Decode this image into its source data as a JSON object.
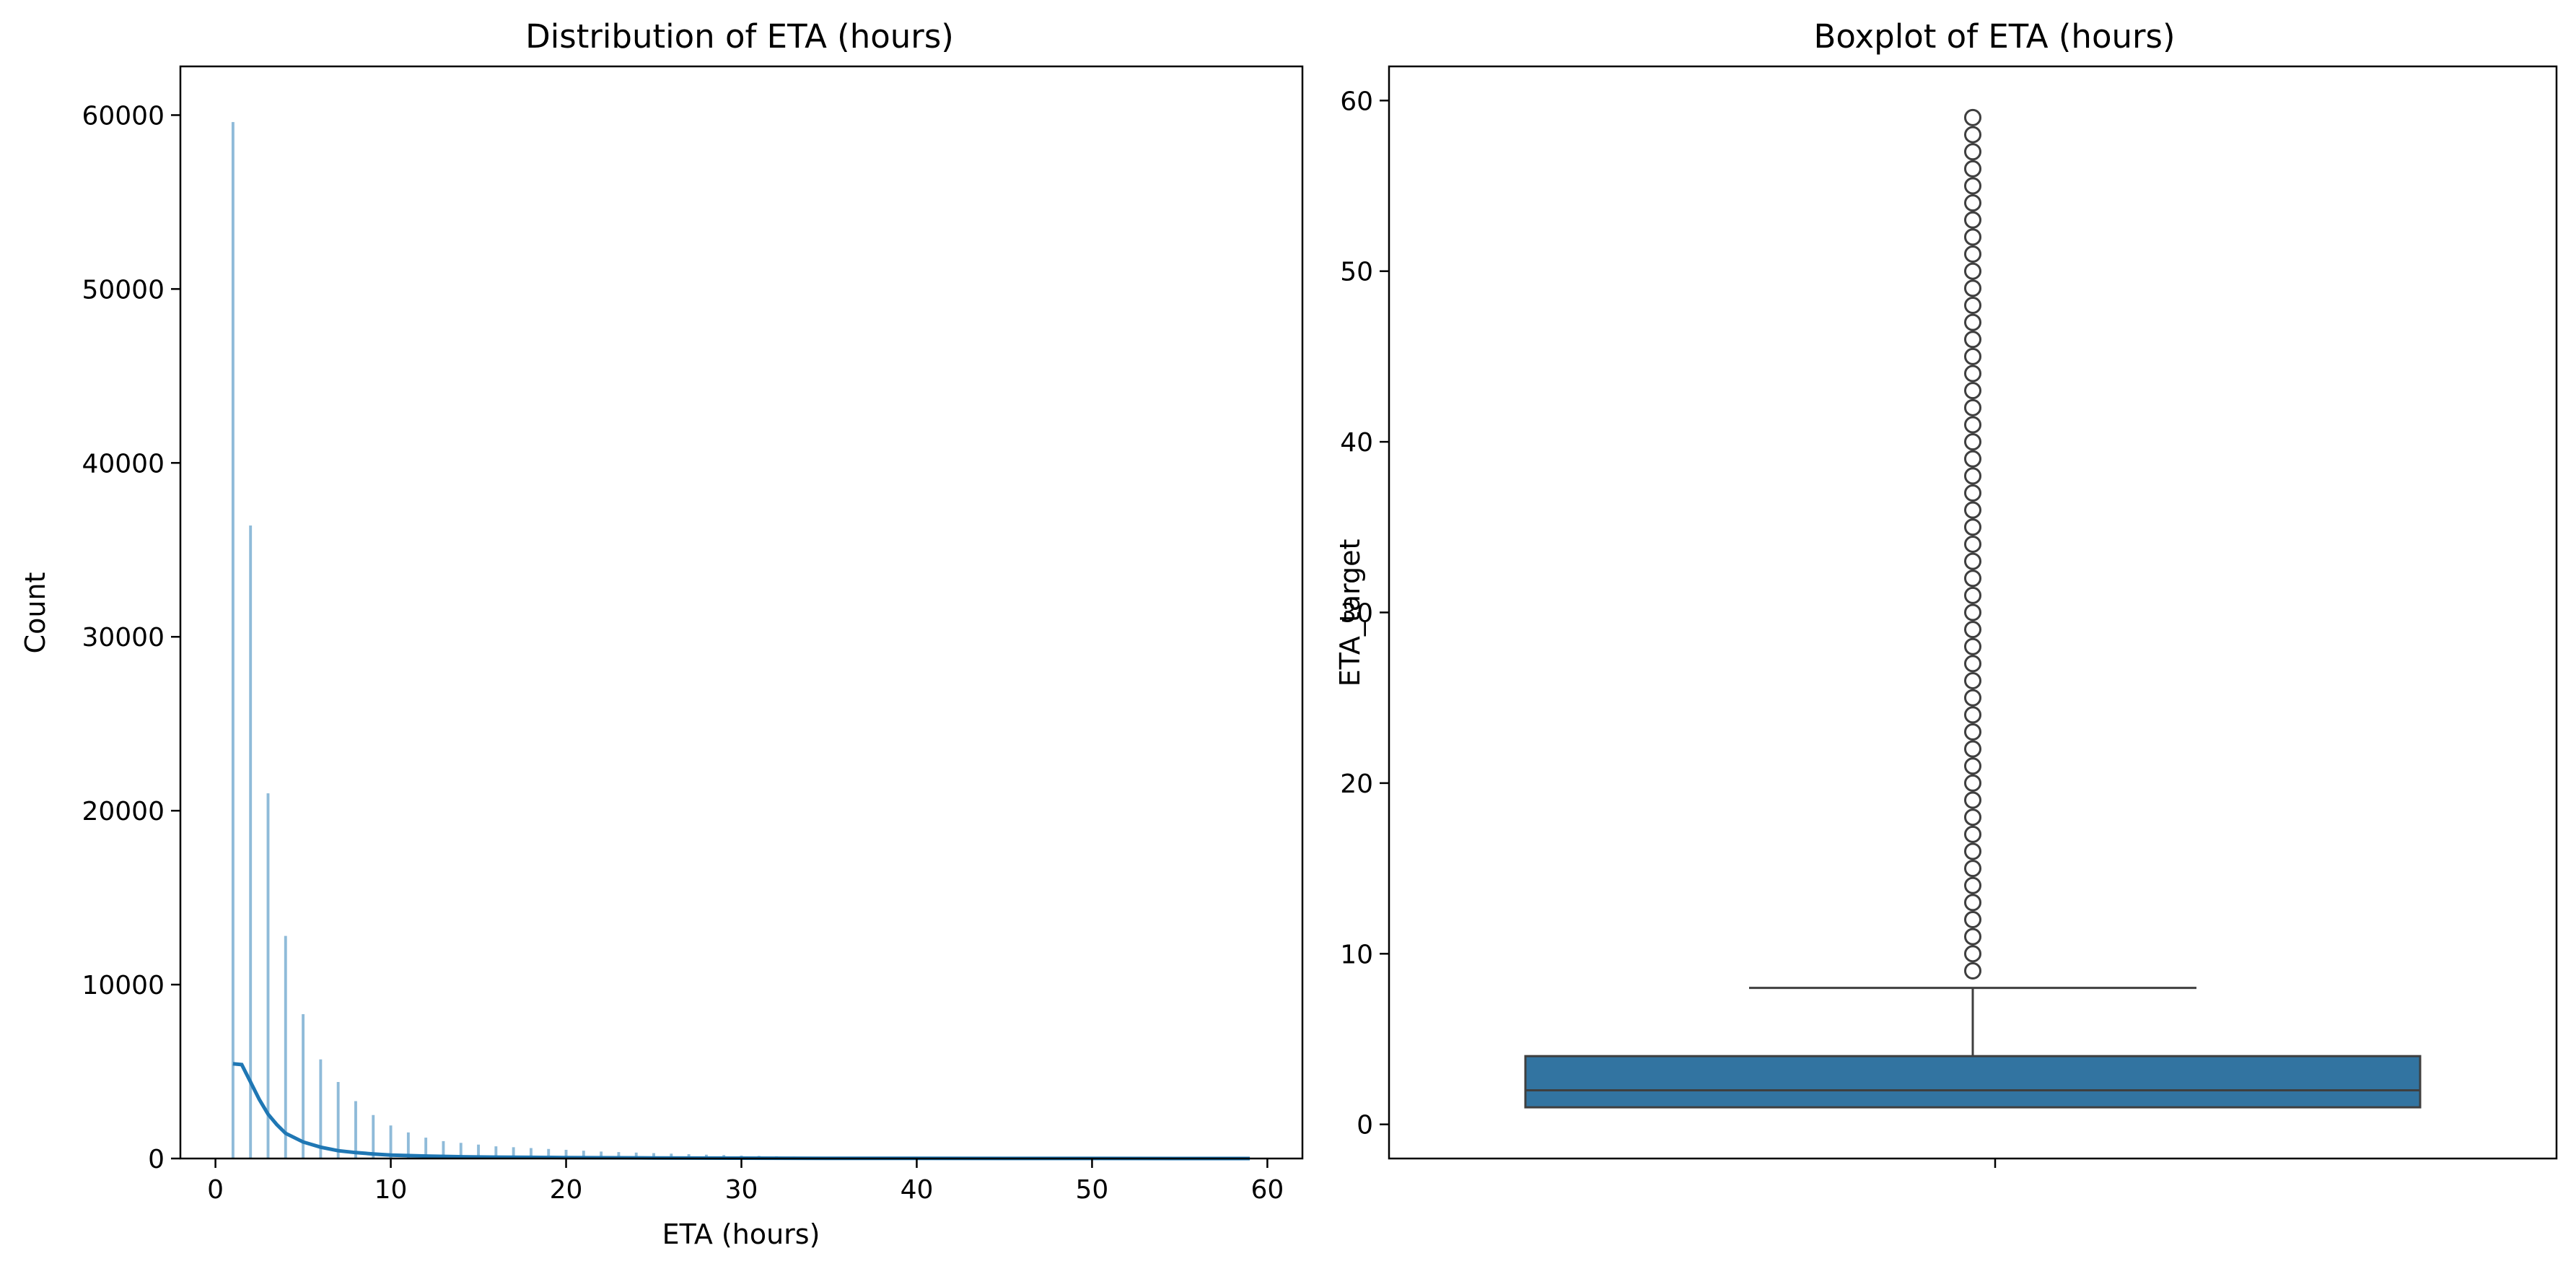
{
  "chart_data": [
    {
      "type": "histogram",
      "title": "Distribution of ETA (hours)",
      "xlabel": "ETA (hours)",
      "ylabel": "Count",
      "xlim": [
        -2,
        62
      ],
      "ylim": [
        0,
        62800
      ],
      "xticks": [
        0,
        10,
        20,
        30,
        40,
        50,
        60
      ],
      "yticks": [
        0,
        10000,
        20000,
        30000,
        40000,
        50000,
        60000
      ],
      "grid": false,
      "bar_color": "#1f77b4",
      "bins": {
        "x": [
          1,
          2,
          3,
          4,
          5,
          6,
          7,
          8,
          9,
          10,
          11,
          12,
          13,
          14,
          15,
          16,
          17,
          18,
          19,
          20,
          21,
          22,
          23,
          24,
          25,
          26,
          27,
          28,
          29,
          30,
          31,
          32,
          33,
          34,
          35,
          36,
          37,
          38,
          39,
          40,
          41,
          42,
          43,
          44,
          45,
          46,
          47,
          48,
          49,
          50,
          51,
          52,
          53,
          54,
          55,
          56,
          57,
          58,
          59
        ],
        "counts": [
          59600,
          36400,
          21000,
          12800,
          8300,
          5700,
          4400,
          3300,
          2500,
          1900,
          1500,
          1200,
          1000,
          900,
          800,
          700,
          650,
          600,
          550,
          500,
          450,
          400,
          370,
          340,
          310,
          280,
          250,
          220,
          200,
          170,
          150,
          130,
          110,
          95,
          85,
          75,
          65,
          55,
          50,
          45,
          40,
          35,
          30,
          28,
          25,
          22,
          20,
          18,
          16,
          14,
          12,
          10,
          9,
          8,
          7,
          6,
          5,
          4,
          3
        ]
      },
      "kde": {
        "x": [
          1,
          1.5,
          2,
          2.5,
          3,
          3.5,
          4,
          5,
          6,
          7,
          8,
          9,
          10,
          12,
          14,
          16,
          18,
          20,
          25,
          30,
          35,
          40,
          45,
          50,
          55,
          59
        ],
        "y": [
          5450,
          5400,
          4400,
          3400,
          2550,
          1950,
          1450,
          950,
          650,
          450,
          340,
          260,
          200,
          140,
          100,
          80,
          65,
          55,
          35,
          22,
          14,
          9,
          6,
          4,
          2,
          1
        ]
      }
    },
    {
      "type": "boxplot",
      "title": "Boxplot of ETA (hours)",
      "xlabel": "",
      "ylabel": "ETA_target",
      "ylim": [
        -2,
        62
      ],
      "yticks": [
        0,
        10,
        20,
        30,
        40,
        50,
        60
      ],
      "grid": false,
      "box_color": "#3274a1",
      "stats": {
        "min": 1,
        "q1": 1,
        "median": 2,
        "q3": 4,
        "whisker_low": 1,
        "whisker_high": 8
      },
      "outliers": [
        9,
        10,
        11,
        12,
        13,
        14,
        15,
        16,
        17,
        18,
        19,
        20,
        21,
        22,
        23,
        24,
        25,
        26,
        27,
        28,
        29,
        30,
        31,
        32,
        33,
        34,
        35,
        36,
        37,
        38,
        39,
        40,
        41,
        42,
        43,
        44,
        45,
        46,
        47,
        48,
        49,
        50,
        51,
        52,
        53,
        54,
        55,
        56,
        57,
        58,
        59
      ]
    }
  ]
}
